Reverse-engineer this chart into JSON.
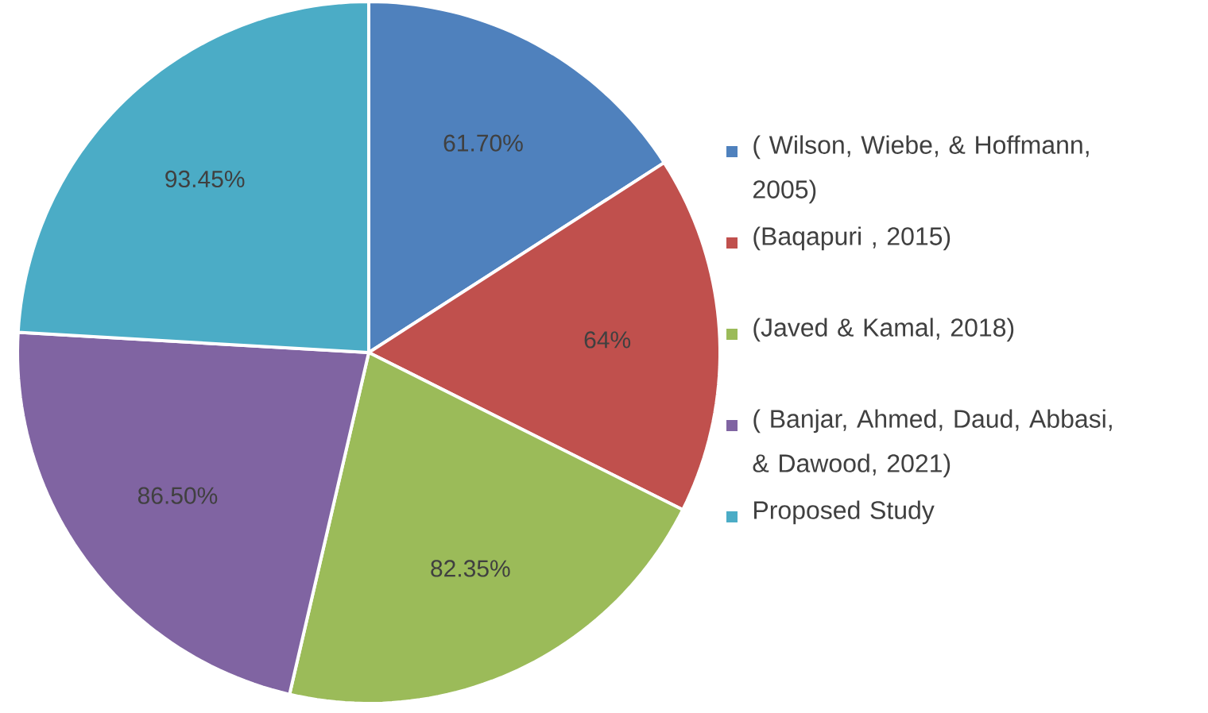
{
  "chart_data": {
    "type": "pie",
    "categories": [
      "( Wilson, Wiebe, & Hoffmann, 2005)",
      "(Baqapuri , 2015)",
      "(Javed & Kamal, 2018)",
      "( Banjar, Ahmed, Daud, Abbasi, & Dawood, 2021)",
      "Proposed Study"
    ],
    "values": [
      61.7,
      64,
      82.35,
      86.5,
      93.45
    ],
    "value_labels": [
      "61.70%",
      "64%",
      "82.35%",
      "86.50%",
      "93.45%"
    ],
    "colors": [
      "#4f81bd",
      "#c0504d",
      "#9bbb59",
      "#8064a2",
      "#4bacc6"
    ],
    "legend": "right"
  }
}
